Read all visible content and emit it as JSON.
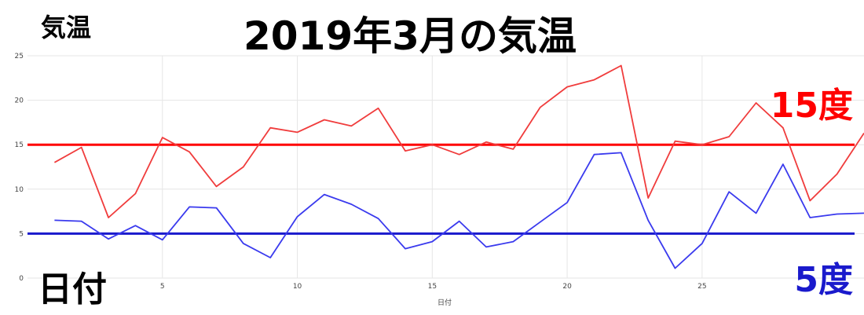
{
  "title": "2019年3月の気温",
  "ylabel_big": "気温",
  "xlabel_big": "日付",
  "ref_high_label": "15度",
  "ref_low_label": "5度",
  "colors": {
    "high_series": "#f03c3c",
    "low_series": "#3a3aee",
    "ref_high": "#ff0000",
    "ref_low": "#1a1acc",
    "grid": "#e6e6e6"
  },
  "chart_data": {
    "type": "line",
    "xlabel": "日付",
    "x": [
      1,
      2,
      3,
      4,
      5,
      6,
      7,
      8,
      9,
      10,
      11,
      12,
      13,
      14,
      15,
      16,
      17,
      18,
      19,
      20,
      21,
      22,
      23,
      24,
      25,
      26,
      27,
      28,
      29,
      30,
      31
    ],
    "xlim": [
      0,
      31
    ],
    "xticks": [
      5,
      10,
      15,
      20,
      25
    ],
    "ylim": [
      0,
      25
    ],
    "yticks": [
      0,
      5,
      10,
      15,
      20,
      25
    ],
    "grid": true,
    "series": [
      {
        "values": [
          13.0,
          14.7,
          6.8,
          9.5,
          15.8,
          14.2,
          10.3,
          12.5,
          16.9,
          16.4,
          17.8,
          17.1,
          19.1,
          14.3,
          15.0,
          13.9,
          15.3,
          14.5,
          19.2,
          21.5,
          22.3,
          23.9,
          9.0,
          15.4,
          15.0,
          15.9,
          19.7,
          16.9,
          8.7,
          11.7,
          16.3
        ]
      },
      {
        "values": [
          6.5,
          6.4,
          4.4,
          5.9,
          4.3,
          8.0,
          7.9,
          3.9,
          2.3,
          6.9,
          9.4,
          8.3,
          6.7,
          3.3,
          4.1,
          6.4,
          3.5,
          4.1,
          6.3,
          8.5,
          13.9,
          14.1,
          6.5,
          1.1,
          3.9,
          9.7,
          7.3,
          12.8,
          6.8,
          7.2,
          7.3
        ]
      }
    ],
    "reference_lines": [
      15,
      5
    ]
  }
}
